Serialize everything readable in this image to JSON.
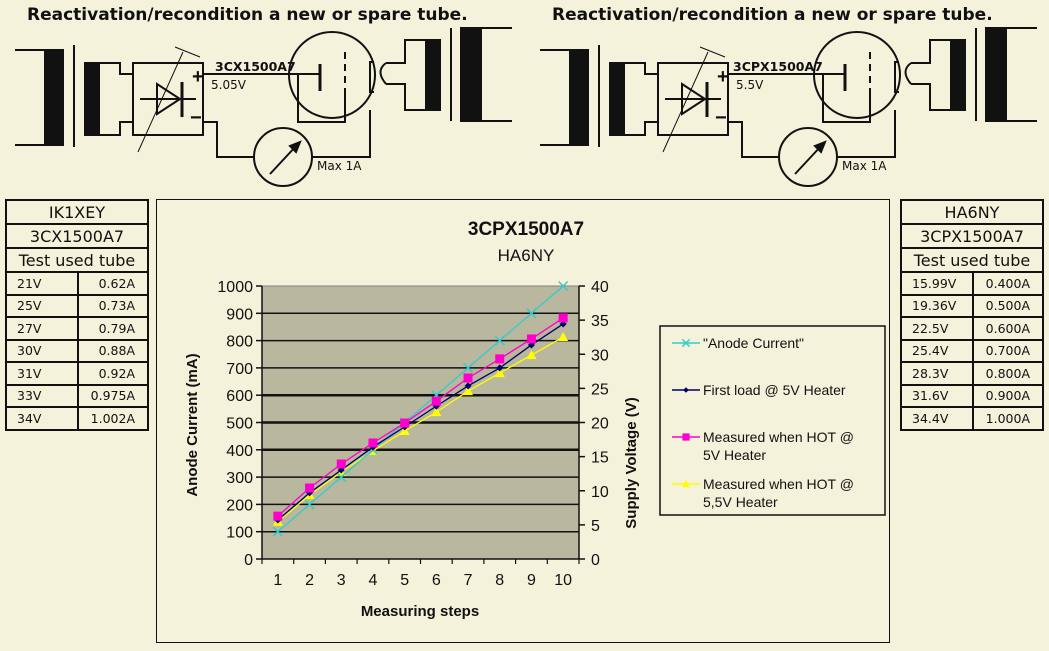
{
  "left_panel": {
    "heading": "Reactivation/recondition a new or spare tube.",
    "tube_label": "3CX1500A7",
    "heater_voltage": "5.05V",
    "meter_label": "Max 1A",
    "plus_sign": "+",
    "minus_sign": "−"
  },
  "right_panel": {
    "heading": "Reactivation/recondition a new or spare tube.",
    "tube_label": "3CPX1500A7",
    "heater_voltage": "5.5V",
    "meter_label": "Max 1A",
    "plus_sign": "+",
    "minus_sign": "−"
  },
  "left_table": {
    "callsign": "IK1XEY",
    "tube": "3CX1500A7",
    "caption": "Test used tube",
    "rows": [
      {
        "voltage": "21V",
        "current": "0.62A"
      },
      {
        "voltage": "25V",
        "current": "0.73A"
      },
      {
        "voltage": "27V",
        "current": "0.79A"
      },
      {
        "voltage": "30V",
        "current": "0.88A"
      },
      {
        "voltage": "31V",
        "current": "0.92A"
      },
      {
        "voltage": "33V",
        "current": "0.975A"
      },
      {
        "voltage": "34V",
        "current": "1.002A"
      }
    ]
  },
  "right_table": {
    "callsign": "HA6NY",
    "tube": "3CPX1500A7",
    "caption": "Test used tube",
    "rows": [
      {
        "voltage": "15.99V",
        "current": "0.400A"
      },
      {
        "voltage": "19.36V",
        "current": "0.500A"
      },
      {
        "voltage": "22.5V",
        "current": "0.600A"
      },
      {
        "voltage": "25.4V",
        "current": "0.700A"
      },
      {
        "voltage": "28.3V",
        "current": "0.800A"
      },
      {
        "voltage": "31.6V",
        "current": "0.900A"
      },
      {
        "voltage": "34.4V",
        "current": "1.000A"
      }
    ]
  },
  "chart_data": {
    "type": "line",
    "title": "3CPX1500A7",
    "subtitle": "HA6NY",
    "xlabel": "Measuring steps",
    "ylabel": "Anode Current (mA)",
    "y2label": "Supply Voltage (V)",
    "x": [
      1,
      2,
      3,
      4,
      5,
      6,
      7,
      8,
      9,
      10
    ],
    "xticks": [
      "1",
      "2",
      "3",
      "4",
      "5",
      "6",
      "7",
      "8",
      "9",
      "10"
    ],
    "ylim": [
      0,
      1000
    ],
    "yticks": [
      "0",
      "100",
      "200",
      "300",
      "400",
      "500",
      "600",
      "700",
      "800",
      "900",
      "1000"
    ],
    "y2lim": [
      0,
      40
    ],
    "y2ticks": [
      "0",
      "5",
      "10",
      "15",
      "20",
      "25",
      "30",
      "35",
      "40"
    ],
    "grid": true,
    "plot_background": "#b9b79e",
    "legend_position": "right",
    "series": [
      {
        "name": "\"Anode Current\"",
        "color": "#33cccc",
        "marker": "x",
        "axis": "left",
        "values": [
          100,
          200,
          300,
          400,
          500,
          600,
          700,
          800,
          900,
          1000
        ]
      },
      {
        "name": "First load @ 5V Heater",
        "color": "#000066",
        "marker": "diamond",
        "axis": "left",
        "values": [
          143,
          242,
          326,
          410,
          484,
          560,
          634,
          700,
          784,
          861
        ]
      },
      {
        "name": "Measured when HOT @ 5V Heater",
        "color": "#ff00cc",
        "marker": "square",
        "axis": "left",
        "values": [
          157,
          260,
          348,
          425,
          498,
          578,
          663,
          733,
          806,
          883
        ]
      },
      {
        "name": "Measured when HOT @ 5,5V Heater",
        "color": "#ffff00",
        "marker": "triangle",
        "axis": "left",
        "values": [
          136,
          234,
          319,
          396,
          469,
          538,
          615,
          681,
          747,
          813
        ]
      }
    ],
    "legend": [
      {
        "line1": "\"Anode Current\"",
        "line2": ""
      },
      {
        "line1": "First load @ 5V Heater",
        "line2": ""
      },
      {
        "line1": "Measured when HOT @",
        "line2": "5V Heater"
      },
      {
        "line1": "Measured when HOT @",
        "line2": "5,5V Heater"
      }
    ]
  }
}
